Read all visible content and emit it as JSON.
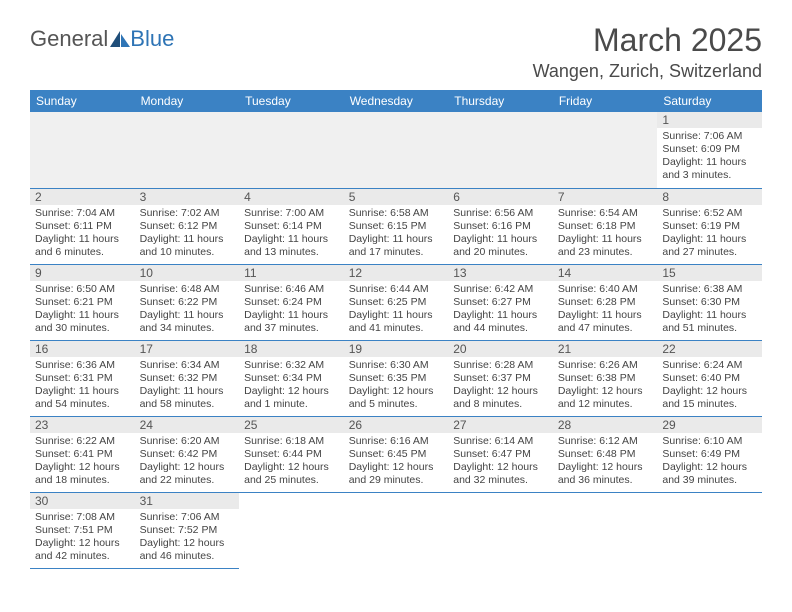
{
  "logo": {
    "part1": "General",
    "part2": "Blue"
  },
  "title": "March 2025",
  "location": "Wangen, Zurich, Switzerland",
  "colors": {
    "header_bg": "#3b82c4",
    "header_fg": "#ffffff",
    "border": "#3b82c4",
    "daynum_bg": "#eaeaea",
    "logo_blue": "#2e74b5"
  },
  "weekdays": [
    "Sunday",
    "Monday",
    "Tuesday",
    "Wednesday",
    "Thursday",
    "Friday",
    "Saturday"
  ],
  "weeks": [
    [
      null,
      null,
      null,
      null,
      null,
      null,
      {
        "n": "1",
        "sr": "Sunrise: 7:06 AM",
        "ss": "Sunset: 6:09 PM",
        "dl": "Daylight: 11 hours and 3 minutes."
      }
    ],
    [
      {
        "n": "2",
        "sr": "Sunrise: 7:04 AM",
        "ss": "Sunset: 6:11 PM",
        "dl": "Daylight: 11 hours and 6 minutes."
      },
      {
        "n": "3",
        "sr": "Sunrise: 7:02 AM",
        "ss": "Sunset: 6:12 PM",
        "dl": "Daylight: 11 hours and 10 minutes."
      },
      {
        "n": "4",
        "sr": "Sunrise: 7:00 AM",
        "ss": "Sunset: 6:14 PM",
        "dl": "Daylight: 11 hours and 13 minutes."
      },
      {
        "n": "5",
        "sr": "Sunrise: 6:58 AM",
        "ss": "Sunset: 6:15 PM",
        "dl": "Daylight: 11 hours and 17 minutes."
      },
      {
        "n": "6",
        "sr": "Sunrise: 6:56 AM",
        "ss": "Sunset: 6:16 PM",
        "dl": "Daylight: 11 hours and 20 minutes."
      },
      {
        "n": "7",
        "sr": "Sunrise: 6:54 AM",
        "ss": "Sunset: 6:18 PM",
        "dl": "Daylight: 11 hours and 23 minutes."
      },
      {
        "n": "8",
        "sr": "Sunrise: 6:52 AM",
        "ss": "Sunset: 6:19 PM",
        "dl": "Daylight: 11 hours and 27 minutes."
      }
    ],
    [
      {
        "n": "9",
        "sr": "Sunrise: 6:50 AM",
        "ss": "Sunset: 6:21 PM",
        "dl": "Daylight: 11 hours and 30 minutes."
      },
      {
        "n": "10",
        "sr": "Sunrise: 6:48 AM",
        "ss": "Sunset: 6:22 PM",
        "dl": "Daylight: 11 hours and 34 minutes."
      },
      {
        "n": "11",
        "sr": "Sunrise: 6:46 AM",
        "ss": "Sunset: 6:24 PM",
        "dl": "Daylight: 11 hours and 37 minutes."
      },
      {
        "n": "12",
        "sr": "Sunrise: 6:44 AM",
        "ss": "Sunset: 6:25 PM",
        "dl": "Daylight: 11 hours and 41 minutes."
      },
      {
        "n": "13",
        "sr": "Sunrise: 6:42 AM",
        "ss": "Sunset: 6:27 PM",
        "dl": "Daylight: 11 hours and 44 minutes."
      },
      {
        "n": "14",
        "sr": "Sunrise: 6:40 AM",
        "ss": "Sunset: 6:28 PM",
        "dl": "Daylight: 11 hours and 47 minutes."
      },
      {
        "n": "15",
        "sr": "Sunrise: 6:38 AM",
        "ss": "Sunset: 6:30 PM",
        "dl": "Daylight: 11 hours and 51 minutes."
      }
    ],
    [
      {
        "n": "16",
        "sr": "Sunrise: 6:36 AM",
        "ss": "Sunset: 6:31 PM",
        "dl": "Daylight: 11 hours and 54 minutes."
      },
      {
        "n": "17",
        "sr": "Sunrise: 6:34 AM",
        "ss": "Sunset: 6:32 PM",
        "dl": "Daylight: 11 hours and 58 minutes."
      },
      {
        "n": "18",
        "sr": "Sunrise: 6:32 AM",
        "ss": "Sunset: 6:34 PM",
        "dl": "Daylight: 12 hours and 1 minute."
      },
      {
        "n": "19",
        "sr": "Sunrise: 6:30 AM",
        "ss": "Sunset: 6:35 PM",
        "dl": "Daylight: 12 hours and 5 minutes."
      },
      {
        "n": "20",
        "sr": "Sunrise: 6:28 AM",
        "ss": "Sunset: 6:37 PM",
        "dl": "Daylight: 12 hours and 8 minutes."
      },
      {
        "n": "21",
        "sr": "Sunrise: 6:26 AM",
        "ss": "Sunset: 6:38 PM",
        "dl": "Daylight: 12 hours and 12 minutes."
      },
      {
        "n": "22",
        "sr": "Sunrise: 6:24 AM",
        "ss": "Sunset: 6:40 PM",
        "dl": "Daylight: 12 hours and 15 minutes."
      }
    ],
    [
      {
        "n": "23",
        "sr": "Sunrise: 6:22 AM",
        "ss": "Sunset: 6:41 PM",
        "dl": "Daylight: 12 hours and 18 minutes."
      },
      {
        "n": "24",
        "sr": "Sunrise: 6:20 AM",
        "ss": "Sunset: 6:42 PM",
        "dl": "Daylight: 12 hours and 22 minutes."
      },
      {
        "n": "25",
        "sr": "Sunrise: 6:18 AM",
        "ss": "Sunset: 6:44 PM",
        "dl": "Daylight: 12 hours and 25 minutes."
      },
      {
        "n": "26",
        "sr": "Sunrise: 6:16 AM",
        "ss": "Sunset: 6:45 PM",
        "dl": "Daylight: 12 hours and 29 minutes."
      },
      {
        "n": "27",
        "sr": "Sunrise: 6:14 AM",
        "ss": "Sunset: 6:47 PM",
        "dl": "Daylight: 12 hours and 32 minutes."
      },
      {
        "n": "28",
        "sr": "Sunrise: 6:12 AM",
        "ss": "Sunset: 6:48 PM",
        "dl": "Daylight: 12 hours and 36 minutes."
      },
      {
        "n": "29",
        "sr": "Sunrise: 6:10 AM",
        "ss": "Sunset: 6:49 PM",
        "dl": "Daylight: 12 hours and 39 minutes."
      }
    ],
    [
      {
        "n": "30",
        "sr": "Sunrise: 7:08 AM",
        "ss": "Sunset: 7:51 PM",
        "dl": "Daylight: 12 hours and 42 minutes."
      },
      {
        "n": "31",
        "sr": "Sunrise: 7:06 AM",
        "ss": "Sunset: 7:52 PM",
        "dl": "Daylight: 12 hours and 46 minutes."
      },
      null,
      null,
      null,
      null,
      null
    ]
  ]
}
